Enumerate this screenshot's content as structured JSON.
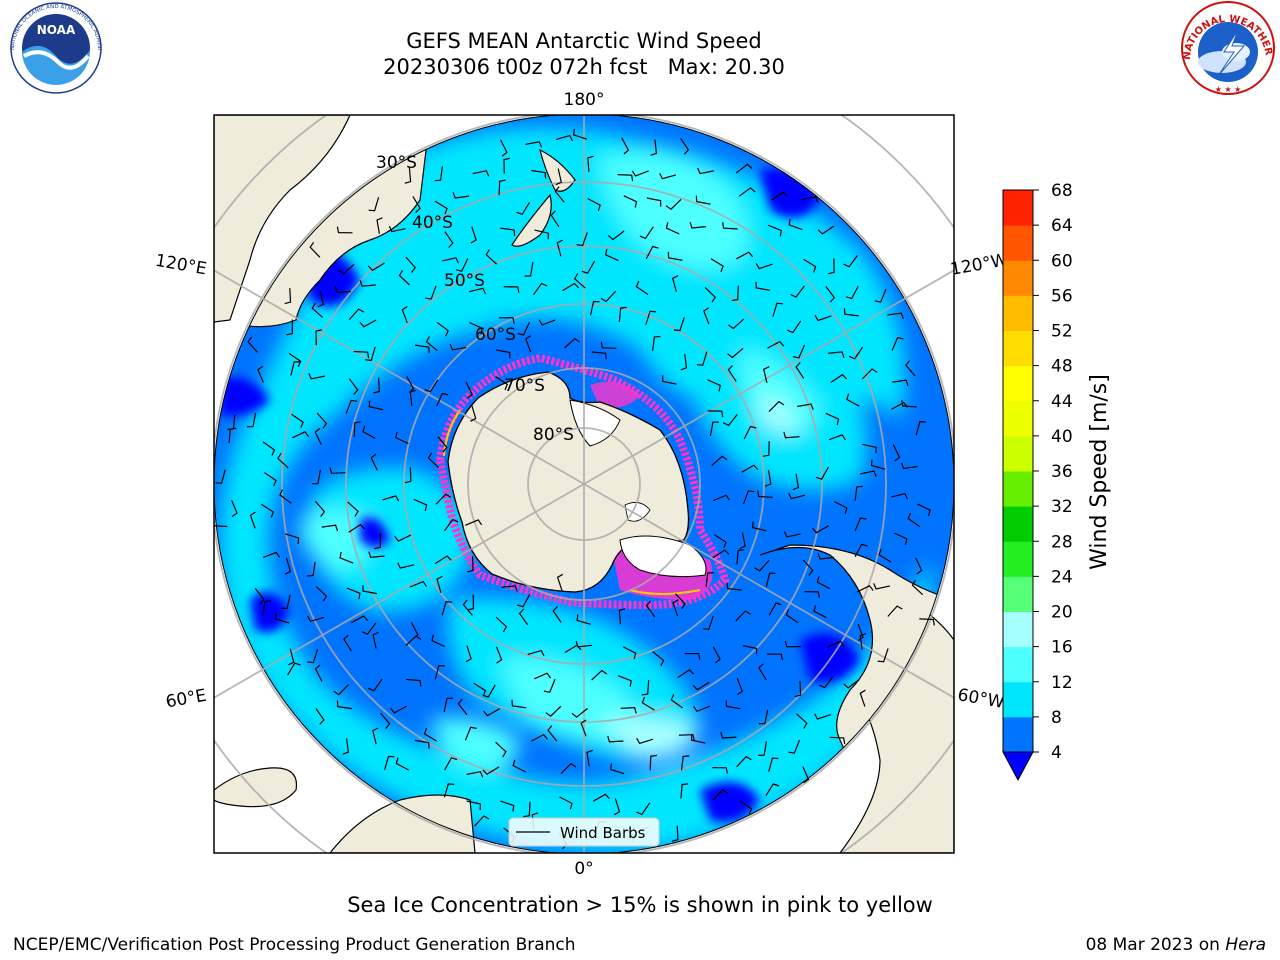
{
  "title": {
    "line1": "GEFS MEAN Antarctic Wind Speed",
    "line2": "20230306 t00z 072h fcst   Max: 20.30"
  },
  "map": {
    "projection": "south polar stereographic",
    "longitude_labels": {
      "top": "180°",
      "bottom": "0°",
      "upper_left": "120°E",
      "upper_right": "120°W",
      "lower_left": "60°E",
      "lower_right": "60°W"
    },
    "latitude_labels": [
      "30°S",
      "40°S",
      "50°S",
      "60°S",
      "70°S",
      "80°S"
    ],
    "land_color": "#efecdc",
    "ice_color": "#ff33cc",
    "legend": {
      "label": "Wind Barbs"
    }
  },
  "colorbar": {
    "label": "Wind Speed [m/s]",
    "ticks": [
      "4",
      "8",
      "12",
      "16",
      "20",
      "24",
      "28",
      "32",
      "36",
      "40",
      "44",
      "48",
      "52",
      "56",
      "60",
      "64",
      "68"
    ],
    "colors": [
      "#0073ff",
      "#00e6ff",
      "#4dffff",
      "#a6ffff",
      "#55ff77",
      "#22ee22",
      "#00cc00",
      "#66ee00",
      "#ccff00",
      "#eeff00",
      "#ffff00",
      "#ffdd00",
      "#ffbb00",
      "#ff8800",
      "#ff5500",
      "#ff2200"
    ],
    "under_color": "#0000ff"
  },
  "chart_data": {
    "type": "heatmap",
    "title": "GEFS MEAN Antarctic Wind Speed",
    "subtitle": "20230306 t00z 072h fcst   Max: 20.30",
    "variable": "Wind Speed",
    "units": "m/s",
    "max_value": 20.3,
    "color_scale_min": 4,
    "color_scale_max": 68,
    "color_scale_step": 4,
    "overlays": [
      "Wind Barbs",
      "Sea Ice Concentration > 15%"
    ]
  },
  "footer": {
    "note": "Sea Ice Concentration > 15% is shown in pink to yellow",
    "credit": "NCEP/EMC/Verification Post Processing Product Generation Branch",
    "date": "08 Mar 2023 on ",
    "machine": "Hera"
  },
  "logos": {
    "noaa": {
      "text": "NOAA",
      "ring": "NATIONAL OCEANIC AND ATMOSPHERIC ADMINISTRATION · U.S. DEPARTMENT OF COMMERCE"
    },
    "nws": {
      "ring": "NATIONAL WEATHER SERVICE"
    }
  }
}
